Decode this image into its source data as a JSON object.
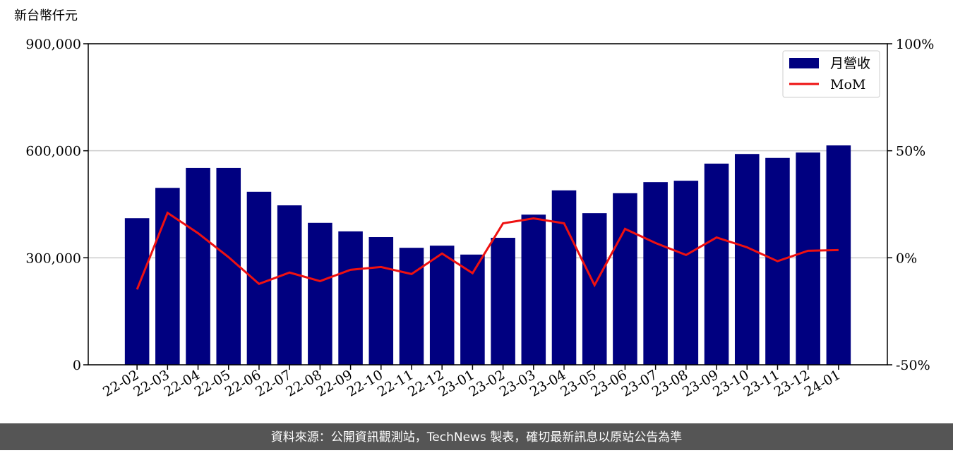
{
  "chart_data": {
    "type": "bar_line",
    "y_label": "新台幣仟元",
    "footer": "資料來源：公開資訊觀測站，TechNews 製表，確切最新訊息以原站公告為準",
    "categories": [
      "22-02",
      "22-03",
      "22-04",
      "22-05",
      "22-06",
      "22-07",
      "22-08",
      "22-09",
      "22-10",
      "22-11",
      "22-12",
      "23-01",
      "23-02",
      "23-03",
      "23-04",
      "23-05",
      "23-06",
      "23-07",
      "23-08",
      "23-09",
      "23-10",
      "23-11",
      "23-12",
      "24-01"
    ],
    "series": [
      {
        "name": "月營收",
        "type": "bar",
        "color": "#000080",
        "values": [
          411000,
          496000,
          552000,
          552000,
          485000,
          447000,
          398000,
          374000,
          358000,
          328000,
          334000,
          309000,
          356000,
          421000,
          489000,
          425000,
          481000,
          512000,
          516000,
          564000,
          591000,
          580000,
          595000,
          615000
        ]
      },
      {
        "name": "MoM",
        "type": "line",
        "axis": "y2",
        "color": "#ee1111",
        "values": [
          -14.8,
          21,
          11.5,
          0.3,
          -12.2,
          -6.9,
          -10.9,
          -5.6,
          -4.3,
          -7.6,
          2,
          -7.2,
          16.1,
          18.4,
          16.1,
          -12.8,
          13.5,
          6.9,
          1.3,
          9.5,
          4.9,
          -1.6,
          3.3,
          3.6
        ]
      }
    ],
    "ylim": [
      0,
      900000
    ],
    "yticks": [
      0,
      {
        "value": 300000,
        "label": "300,000"
      },
      {
        "value": 600000,
        "label": "600,000"
      },
      {
        "value": 900000,
        "label": "900,000"
      }
    ],
    "y2lim": [
      -50,
      100
    ],
    "y2ticks": [
      {
        "value": -50,
        "label": "-50%"
      },
      {
        "value": 0,
        "label": "0%"
      },
      {
        "value": 50,
        "label": "50%"
      },
      {
        "value": 100,
        "label": "100%"
      }
    ],
    "grid": true,
    "legend": "upper right"
  }
}
